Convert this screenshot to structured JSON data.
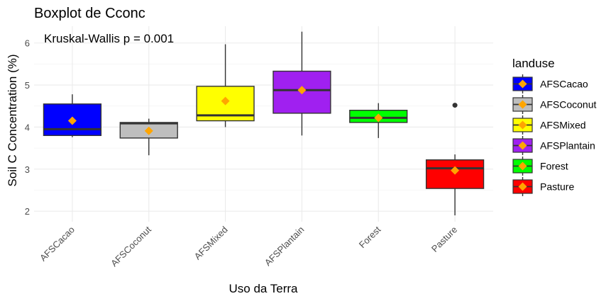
{
  "chart_data": {
    "type": "boxplot",
    "title": "Boxplot de Cconc",
    "annotation": "Kruskal-Wallis p = 0.001",
    "xlabel": "Uso da Terra",
    "ylabel": "Soil C Concentration (%)",
    "ylim": [
      1.75,
      6.4
    ],
    "y_ticks": [
      2,
      3,
      4,
      5,
      6
    ],
    "categories": [
      "AFSCacao",
      "AFSCoconut",
      "AFSMixed",
      "AFSPlantain",
      "Forest",
      "Pasture"
    ],
    "boxes": [
      {
        "name": "AFSCacao",
        "fill": "#0000FF",
        "whisker_low": 3.76,
        "q1": 3.8,
        "median": 3.95,
        "q3": 4.55,
        "whisker_high": 4.78,
        "mean": 4.15,
        "outliers": []
      },
      {
        "name": "AFSCoconut",
        "fill": "#BEBEBE",
        "whisker_low": 3.33,
        "q1": 3.74,
        "median": 4.09,
        "q3": 4.11,
        "whisker_high": 4.2,
        "mean": 3.91,
        "outliers": []
      },
      {
        "name": "AFSMixed",
        "fill": "#FFFF00",
        "whisker_low": 4.0,
        "q1": 4.15,
        "median": 4.28,
        "q3": 4.97,
        "whisker_high": 5.97,
        "mean": 4.62,
        "outliers": []
      },
      {
        "name": "AFSPlantain",
        "fill": "#A020F0",
        "whisker_low": 3.8,
        "q1": 4.33,
        "median": 4.88,
        "q3": 5.33,
        "whisker_high": 6.27,
        "mean": 4.88,
        "outliers": []
      },
      {
        "name": "Forest",
        "fill": "#00FF00",
        "whisker_low": 3.74,
        "q1": 4.11,
        "median": 4.22,
        "q3": 4.4,
        "whisker_high": 4.57,
        "mean": 4.22,
        "outliers": []
      },
      {
        "name": "Pasture",
        "fill": "#FF0000",
        "whisker_low": 1.9,
        "q1": 2.54,
        "median": 3.02,
        "q3": 3.22,
        "whisker_high": 3.35,
        "mean": 2.97,
        "outliers": [
          4.52
        ]
      }
    ],
    "mean_marker_color": "#FFA500",
    "legend": {
      "title": "landuse",
      "placement": "right",
      "entries": [
        "AFSCacao",
        "AFSCoconut",
        "AFSMixed",
        "AFSPlantain",
        "Forest",
        "Pasture"
      ]
    },
    "grid": true
  }
}
